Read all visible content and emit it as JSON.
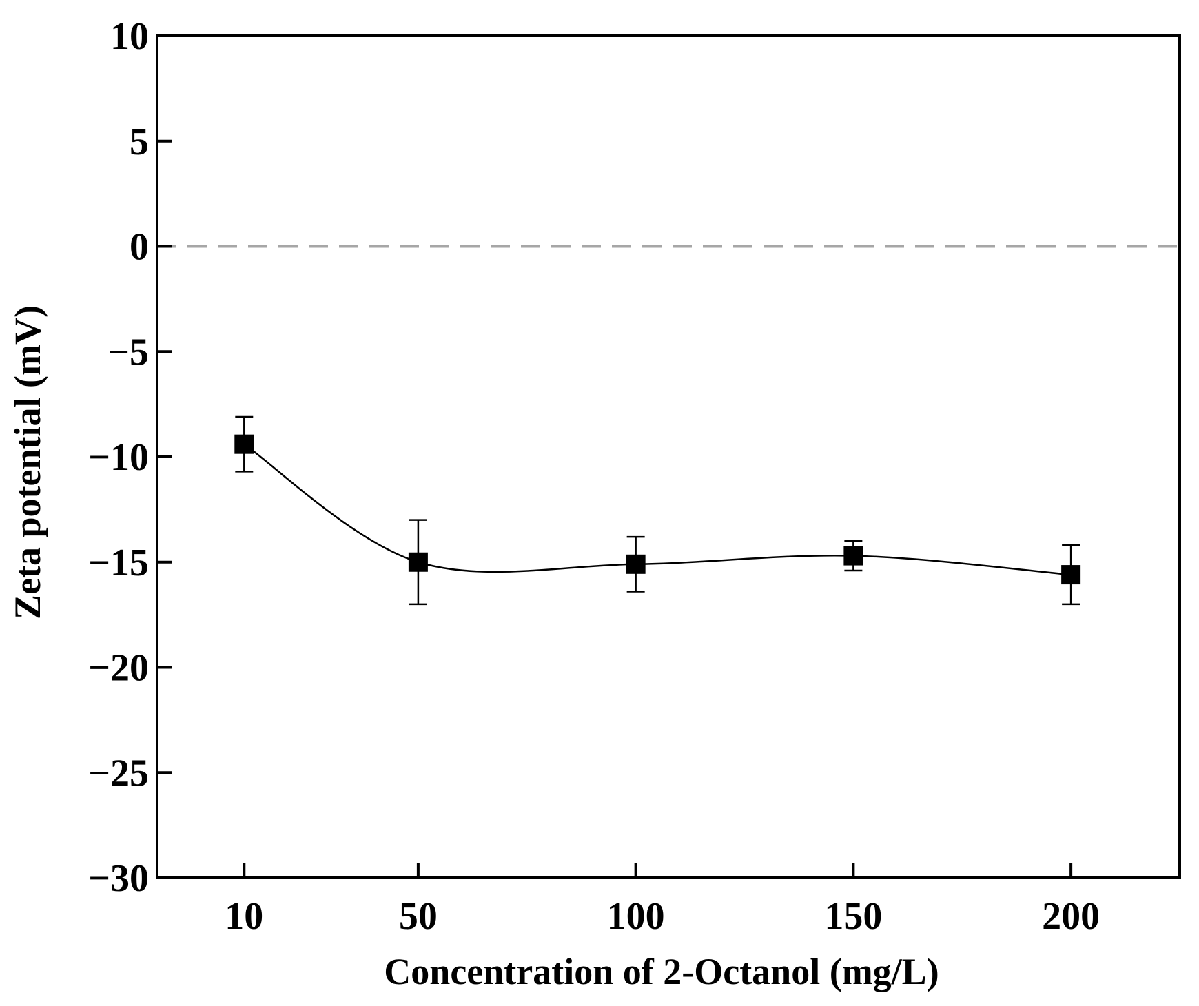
{
  "chart_data": {
    "type": "scatter",
    "title": "",
    "xlabel": "Concentration of 2-Octanol (mg/L)",
    "ylabel": "Zeta potential (mV)",
    "x_categories": [
      "10",
      "50",
      "100",
      "150",
      "200"
    ],
    "x_positions": [
      10,
      50,
      100,
      150,
      200
    ],
    "xlim": [
      -10,
      225
    ],
    "ylim": [
      -30,
      10
    ],
    "yticks": [
      10,
      5,
      0,
      -5,
      -10,
      -15,
      -20,
      -25,
      -30
    ],
    "ytick_labels": [
      "10",
      "5",
      "0",
      "−5",
      "−10",
      "−15",
      "−20",
      "−25",
      "−30"
    ],
    "reference_line": {
      "y": 0,
      "style": "dashed",
      "color": "#a6a6a6"
    },
    "series": [
      {
        "name": "Zeta potential",
        "marker": "square",
        "color": "#000000",
        "fit_line": "smooth",
        "points": [
          {
            "x": 10,
            "y": -9.4,
            "err_low": -10.7,
            "err_high": -8.1
          },
          {
            "x": 50,
            "y": -15.0,
            "err_low": -17.0,
            "err_high": -13.0
          },
          {
            "x": 100,
            "y": -15.1,
            "err_low": -16.4,
            "err_high": -13.8
          },
          {
            "x": 150,
            "y": -14.7,
            "err_low": -15.4,
            "err_high": -14.0
          },
          {
            "x": 200,
            "y": -15.6,
            "err_low": -17.0,
            "err_high": -14.2
          }
        ]
      }
    ]
  }
}
